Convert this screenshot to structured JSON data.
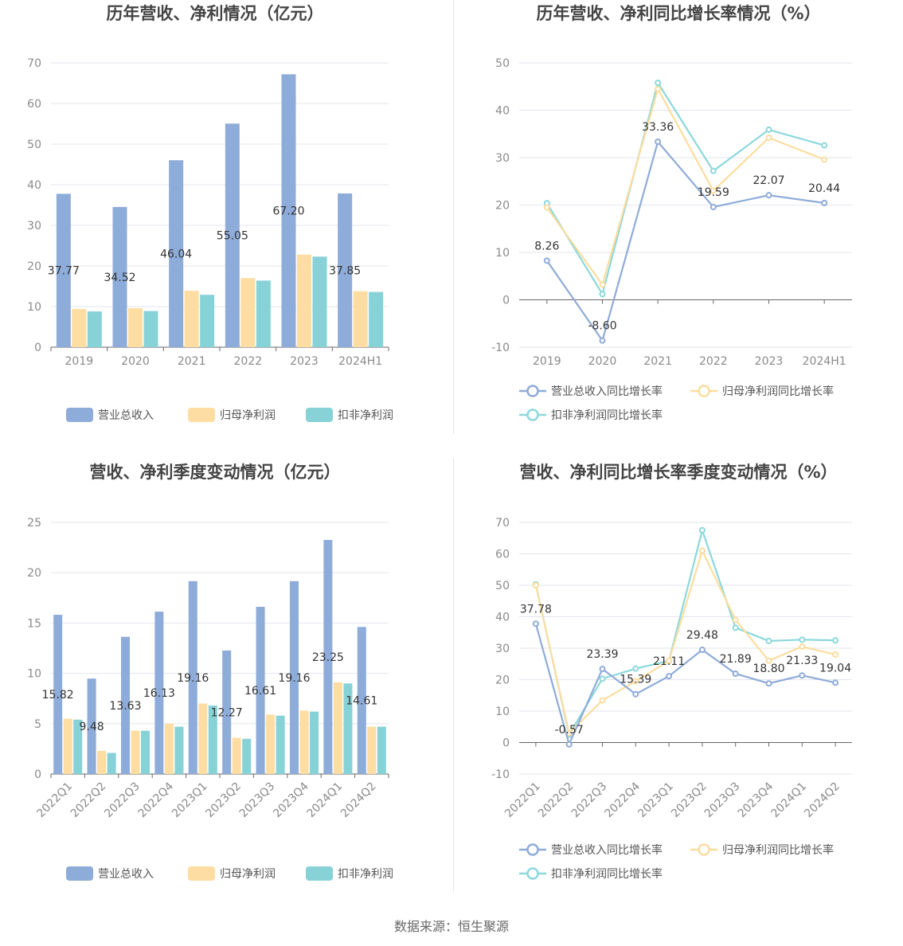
{
  "legend": {
    "bar": [
      "营业总收入",
      "归母净利润",
      "扣非净利润"
    ],
    "line": [
      "营业总收入同比增长率",
      "归母净利润同比增长率",
      "扣非净利润同比增长率"
    ]
  },
  "colors": {
    "revenue": "#8eacd9",
    "net_profit": "#fddda2",
    "deducted_profit": "#87d2d7"
  },
  "source": "数据来源：恒生聚源",
  "chart_data": [
    {
      "type": "bar",
      "title": "历年营收、净利情况（亿元）",
      "categories": [
        "2019",
        "2020",
        "2021",
        "2022",
        "2023",
        "2024H1"
      ],
      "series": [
        {
          "name": "营业总收入",
          "values": [
            37.77,
            34.52,
            46.04,
            55.05,
            67.2,
            37.85
          ]
        },
        {
          "name": "归母净利润",
          "values": [
            9.4,
            9.6,
            13.9,
            17.0,
            22.8,
            13.8
          ]
        },
        {
          "name": "扣非净利润",
          "values": [
            8.8,
            8.9,
            12.9,
            16.4,
            22.3,
            13.6
          ]
        }
      ],
      "labeled_series": 0,
      "ylim": [
        0,
        70
      ],
      "yticks": [
        0,
        10,
        20,
        30,
        40,
        50,
        60,
        70
      ],
      "grid": true,
      "legend_position": "bottom"
    },
    {
      "type": "line",
      "title": "历年营收、净利同比增长率情况（%）",
      "categories": [
        "2019",
        "2020",
        "2021",
        "2022",
        "2023",
        "2024H1"
      ],
      "series": [
        {
          "name": "营业总收入同比增长率",
          "values": [
            8.26,
            -8.6,
            33.36,
            19.59,
            22.07,
            20.44
          ]
        },
        {
          "name": "归母净利润同比增长率",
          "values": [
            19.5,
            3.2,
            44.5,
            23.0,
            34.2,
            29.6
          ]
        },
        {
          "name": "扣非净利润同比增长率",
          "values": [
            20.4,
            1.2,
            45.8,
            27.2,
            35.9,
            32.6
          ]
        }
      ],
      "labeled_series": 0,
      "ylim": [
        -10,
        50
      ],
      "yticks": [
        -10,
        0,
        10,
        20,
        30,
        40,
        50
      ],
      "grid": true,
      "legend_position": "bottom"
    },
    {
      "type": "bar",
      "title": "营收、净利季度变动情况（亿元）",
      "categories": [
        "2022Q1",
        "2022Q2",
        "2022Q3",
        "2022Q4",
        "2023Q1",
        "2023Q2",
        "2023Q3",
        "2023Q4",
        "2024Q1",
        "2024Q2"
      ],
      "series": [
        {
          "name": "营业总收入",
          "values": [
            15.82,
            9.48,
            13.63,
            16.13,
            19.16,
            12.27,
            16.61,
            19.16,
            23.25,
            14.61
          ]
        },
        {
          "name": "归母净利润",
          "values": [
            5.5,
            2.3,
            4.3,
            5.0,
            7.0,
            3.6,
            5.9,
            6.3,
            9.1,
            4.7
          ]
        },
        {
          "name": "扣非净利润",
          "values": [
            5.4,
            2.1,
            4.3,
            4.7,
            6.8,
            3.5,
            5.8,
            6.2,
            9.0,
            4.7
          ]
        }
      ],
      "labeled_series": 0,
      "ylim": [
        0,
        25
      ],
      "yticks": [
        0,
        5,
        10,
        15,
        20,
        25
      ],
      "grid": true,
      "legend_position": "bottom"
    },
    {
      "type": "line",
      "title": "营收、净利同比增长率季度变动情况（%）",
      "categories": [
        "2022Q1",
        "2022Q2",
        "2022Q3",
        "2022Q4",
        "2023Q1",
        "2023Q2",
        "2023Q3",
        "2023Q4",
        "2024Q1",
        "2024Q2"
      ],
      "series": [
        {
          "name": "营业总收入同比增长率",
          "values": [
            37.78,
            -0.57,
            23.39,
            15.39,
            21.11,
            29.48,
            21.89,
            18.8,
            21.33,
            19.04
          ]
        },
        {
          "name": "归母净利润同比增长率",
          "values": [
            50.0,
            3.0,
            13.4,
            19.5,
            26.0,
            61.0,
            39.0,
            26.0,
            30.5,
            28.0
          ]
        },
        {
          "name": "扣非净利润同比增长率",
          "values": [
            50.3,
            2.5,
            20.3,
            23.5,
            26.0,
            67.5,
            36.5,
            32.3,
            32.7,
            32.5
          ]
        }
      ],
      "labeled_series": 0,
      "ylim": [
        -10,
        70
      ],
      "yticks": [
        -10,
        0,
        10,
        20,
        30,
        40,
        50,
        60,
        70
      ],
      "grid": true,
      "legend_position": "bottom"
    }
  ]
}
